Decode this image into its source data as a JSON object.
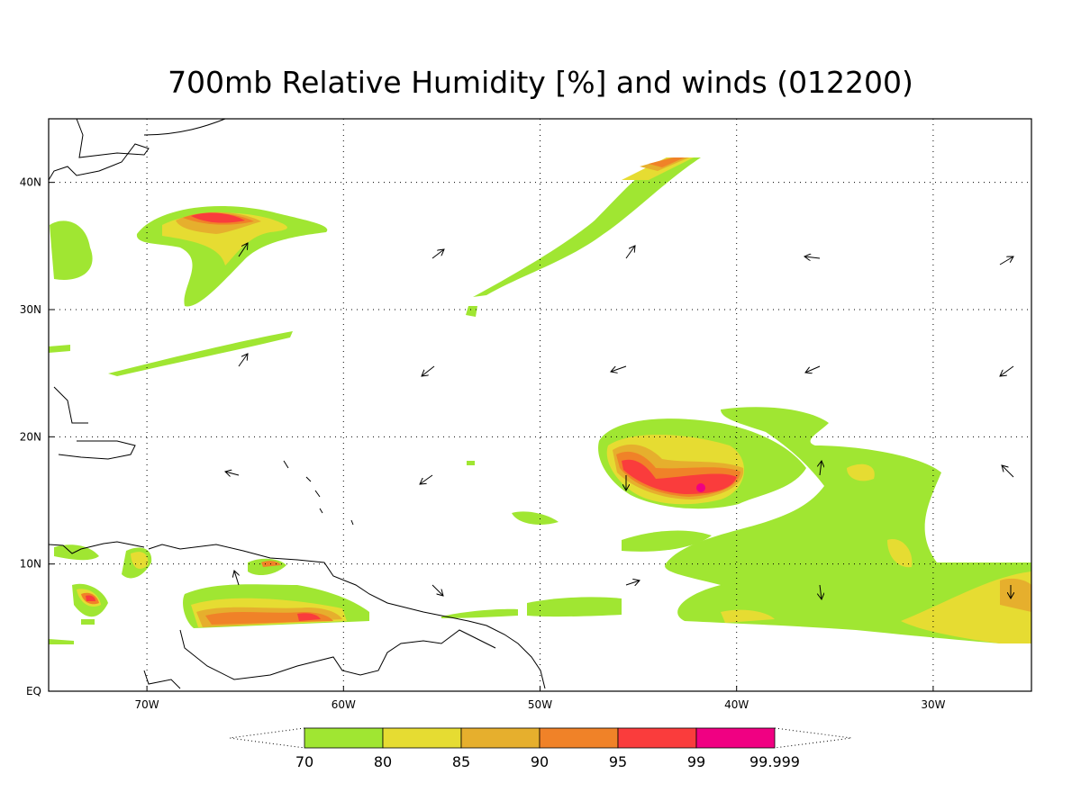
{
  "title": "700mb Relative Humidity [%] and winds (012200)",
  "map": {
    "lon_range": [
      -75,
      -25
    ],
    "lat_range": [
      0,
      45
    ],
    "lon_ticks": [
      {
        "value": -70,
        "label": "70W"
      },
      {
        "value": -60,
        "label": "60W"
      },
      {
        "value": -50,
        "label": "50W"
      },
      {
        "value": -40,
        "label": "40W"
      },
      {
        "value": -30,
        "label": "30W"
      }
    ],
    "lat_ticks": [
      {
        "value": 0,
        "label": "EQ"
      },
      {
        "value": 10,
        "label": "10N"
      },
      {
        "value": 20,
        "label": "20N"
      },
      {
        "value": 30,
        "label": "30N"
      },
      {
        "value": 40,
        "label": "40N"
      }
    ]
  },
  "colorbar": {
    "levels": [
      70,
      80,
      85,
      90,
      95,
      99,
      99.999
    ],
    "colors": [
      "#a0e632",
      "#e6dc32",
      "#e6af2d",
      "#f08228",
      "#fa3c3c",
      "#f00082"
    ]
  }
}
